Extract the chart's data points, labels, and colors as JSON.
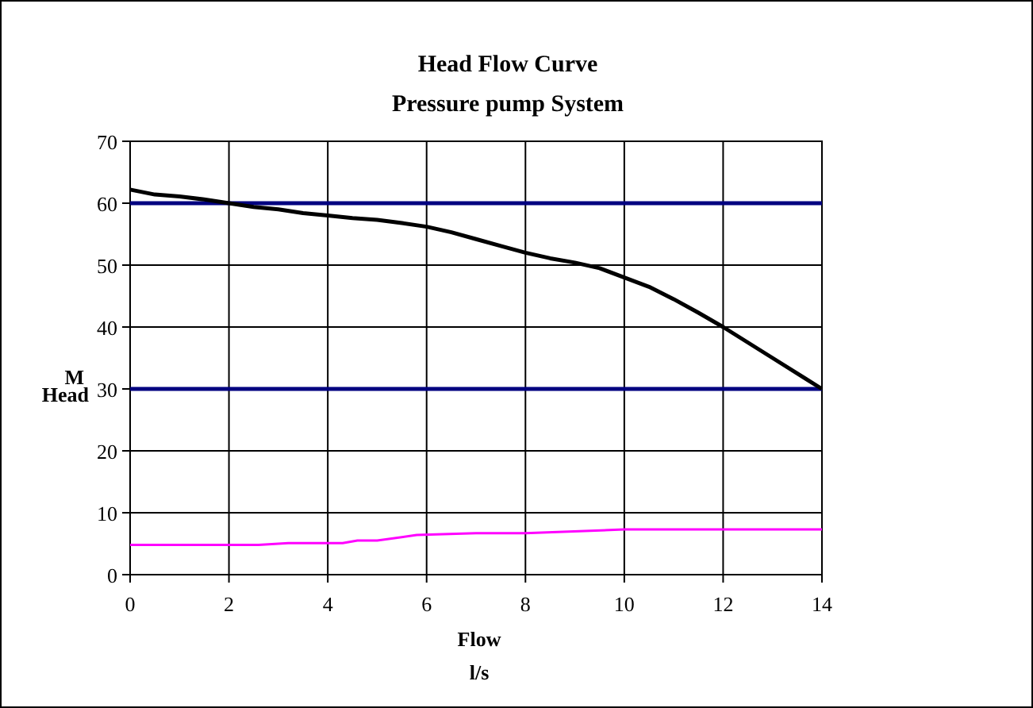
{
  "chart_data": {
    "type": "line",
    "title": "Head Flow  Curve",
    "subtitle": "Pressure pump System",
    "xlabel": "Flow\nl/s",
    "ylabel": "M\nHead",
    "xlim": [
      0,
      14
    ],
    "xticks": [
      0,
      2,
      4,
      6,
      8,
      10,
      12,
      14
    ],
    "ylim": [
      0,
      70
    ],
    "yticks": [
      0,
      10,
      20,
      30,
      40,
      50,
      60,
      70
    ],
    "grid": true,
    "marker": "none",
    "line_style": "solid",
    "series": [
      {
        "color": "#000080",
        "x": [
          0,
          14
        ],
        "values": [
          60,
          60
        ]
      },
      {
        "color": "#000080",
        "x": [
          0,
          14
        ],
        "values": [
          30,
          30
        ]
      },
      {
        "color": "#000000",
        "x": [
          0,
          0.5,
          1,
          1.5,
          2,
          2.5,
          3,
          3.5,
          4,
          4.5,
          5,
          5.5,
          6,
          6.5,
          7,
          7.5,
          8,
          8.5,
          9,
          9.5,
          10,
          10.5,
          11,
          11.5,
          12,
          13,
          14
        ],
        "values": [
          62.2,
          61.4,
          61.1,
          60.6,
          60,
          59.4,
          59,
          58.4,
          58,
          57.6,
          57.3,
          56.8,
          56.2,
          55.3,
          54.2,
          53.1,
          52,
          51.1,
          50.4,
          49.5,
          48,
          46.5,
          44.5,
          42.3,
          40,
          35,
          30
        ]
      },
      {
        "color": "#ff00ff",
        "x": [
          0,
          2,
          2.6,
          3.2,
          4.3,
          4.6,
          5,
          5.8,
          7,
          8,
          10,
          14
        ],
        "values": [
          4.8,
          4.8,
          4.8,
          5.1,
          5.1,
          5.5,
          5.5,
          6.4,
          6.7,
          6.7,
          7.3,
          7.3
        ]
      }
    ]
  }
}
